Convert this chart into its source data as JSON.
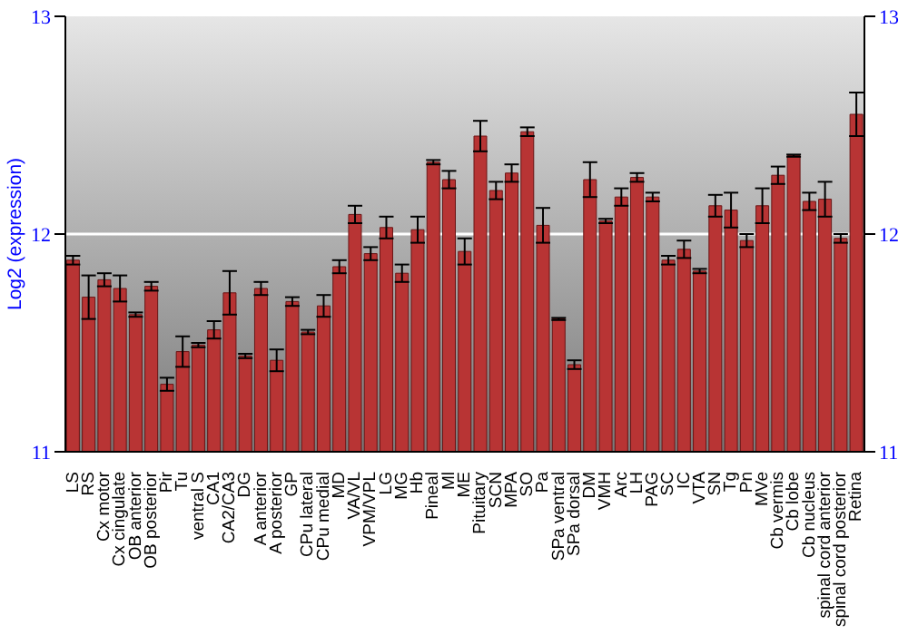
{
  "chart_data": {
    "type": "bar",
    "ylabel": "Log2 (expression)",
    "categories": [
      "LS",
      "RS",
      "Cx motor",
      "Cx cingulate",
      "OB anterior",
      "OB posterior",
      "Pir",
      "Tu",
      "ventral S",
      "CA1",
      "CA2/CA3",
      "DG",
      "A anterior",
      "A posterior",
      "GP",
      "CPu lateral",
      "CPu medial",
      "MD",
      "VA/VL",
      "VPM/VPL",
      "LG",
      "MG",
      "Hb",
      "Pineal",
      "Ml",
      "ME",
      "Pituitary",
      "SCN",
      "MPA",
      "SO",
      "Pa",
      "SPa ventral",
      "SPa dorsal",
      "DM",
      "VMH",
      "Arc",
      "LH",
      "PAG",
      "SC",
      "IC",
      "VTA",
      "SN",
      "Tg",
      "Pn",
      "MVe",
      "Cb vermis",
      "Cb lobe",
      "Cb nucleus",
      "spinal cord anterior",
      "spinal cord posterior",
      "Retina"
    ],
    "series": [
      {
        "color": "#b83434",
        "values": [
          11.88,
          11.71,
          11.79,
          11.75,
          11.63,
          11.76,
          11.31,
          11.46,
          11.49,
          11.56,
          11.73,
          11.44,
          11.75,
          11.42,
          11.69,
          11.55,
          11.67,
          11.85,
          12.09,
          11.91,
          12.03,
          11.82,
          12.02,
          12.33,
          12.25,
          11.92,
          12.45,
          12.2,
          12.28,
          12.47,
          12.04,
          11.61,
          11.4,
          12.25,
          12.06,
          12.17,
          12.26,
          12.17,
          11.88,
          11.93,
          11.83,
          12.13,
          12.11,
          11.97,
          12.13,
          12.27,
          12.36,
          12.15,
          12.16,
          11.98,
          12.55
        ],
        "errors": [
          0.02,
          0.1,
          0.03,
          0.06,
          0.01,
          0.02,
          0.03,
          0.07,
          0.01,
          0.04,
          0.1,
          0.01,
          0.03,
          0.05,
          0.02,
          0.01,
          0.05,
          0.03,
          0.04,
          0.03,
          0.05,
          0.04,
          0.06,
          0.01,
          0.04,
          0.06,
          0.07,
          0.04,
          0.04,
          0.02,
          0.08,
          0.005,
          0.02,
          0.08,
          0.01,
          0.04,
          0.02,
          0.02,
          0.02,
          0.04,
          0.01,
          0.05,
          0.08,
          0.03,
          0.08,
          0.04,
          0.005,
          0.04,
          0.08,
          0.02,
          0.1
        ]
      }
    ],
    "ylim": [
      11,
      13
    ],
    "yticks": [
      11,
      12,
      13
    ],
    "y2lim": [
      11,
      13
    ],
    "y2ticks": [
      11,
      12,
      13
    ],
    "grid": "y"
  }
}
